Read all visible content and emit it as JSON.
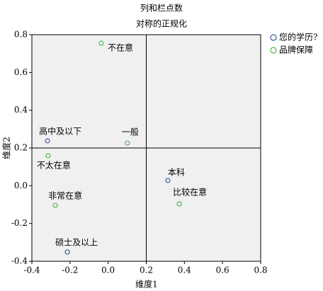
{
  "chart_data": {
    "type": "scatter",
    "title": "列和栏点数",
    "subtitle": "对称的正规化",
    "x_label": "维度1",
    "y_label": "维度2",
    "xlim": [
      -0.4,
      0.8
    ],
    "ylim": [
      -0.4,
      0.8
    ],
    "xticks": [
      -0.4,
      -0.2,
      {
        "value": 0,
        "label": "0.0"
      },
      0.2,
      0.4,
      0.6,
      0.8
    ],
    "yticks": [
      -0.4,
      -0.2,
      {
        "value": 0,
        "label": "0.0"
      },
      0.2,
      0.4,
      0.6,
      0.8
    ],
    "reference_lines": {
      "x": 0.2,
      "y": 0.2
    },
    "legend": "right",
    "series": [
      {
        "name": "您的学历?",
        "color": "#3a5aa8",
        "labels": [
          "高中及以下",
          "硕士及以上",
          "本科"
        ],
        "x": [
          -0.318,
          -0.214,
          0.313
        ],
        "y": [
          0.238,
          -0.351,
          0.028
        ]
      },
      {
        "name": "品牌保障",
        "color": "#4cb84c",
        "labels": [
          "不在意",
          "一般",
          "不太在意",
          "非常在意",
          "比较在意"
        ],
        "x": [
          -0.036,
          0.101,
          -0.315,
          -0.277,
          0.373
        ],
        "y": [
          0.755,
          0.226,
          0.159,
          -0.104,
          -0.096
        ]
      }
    ]
  }
}
